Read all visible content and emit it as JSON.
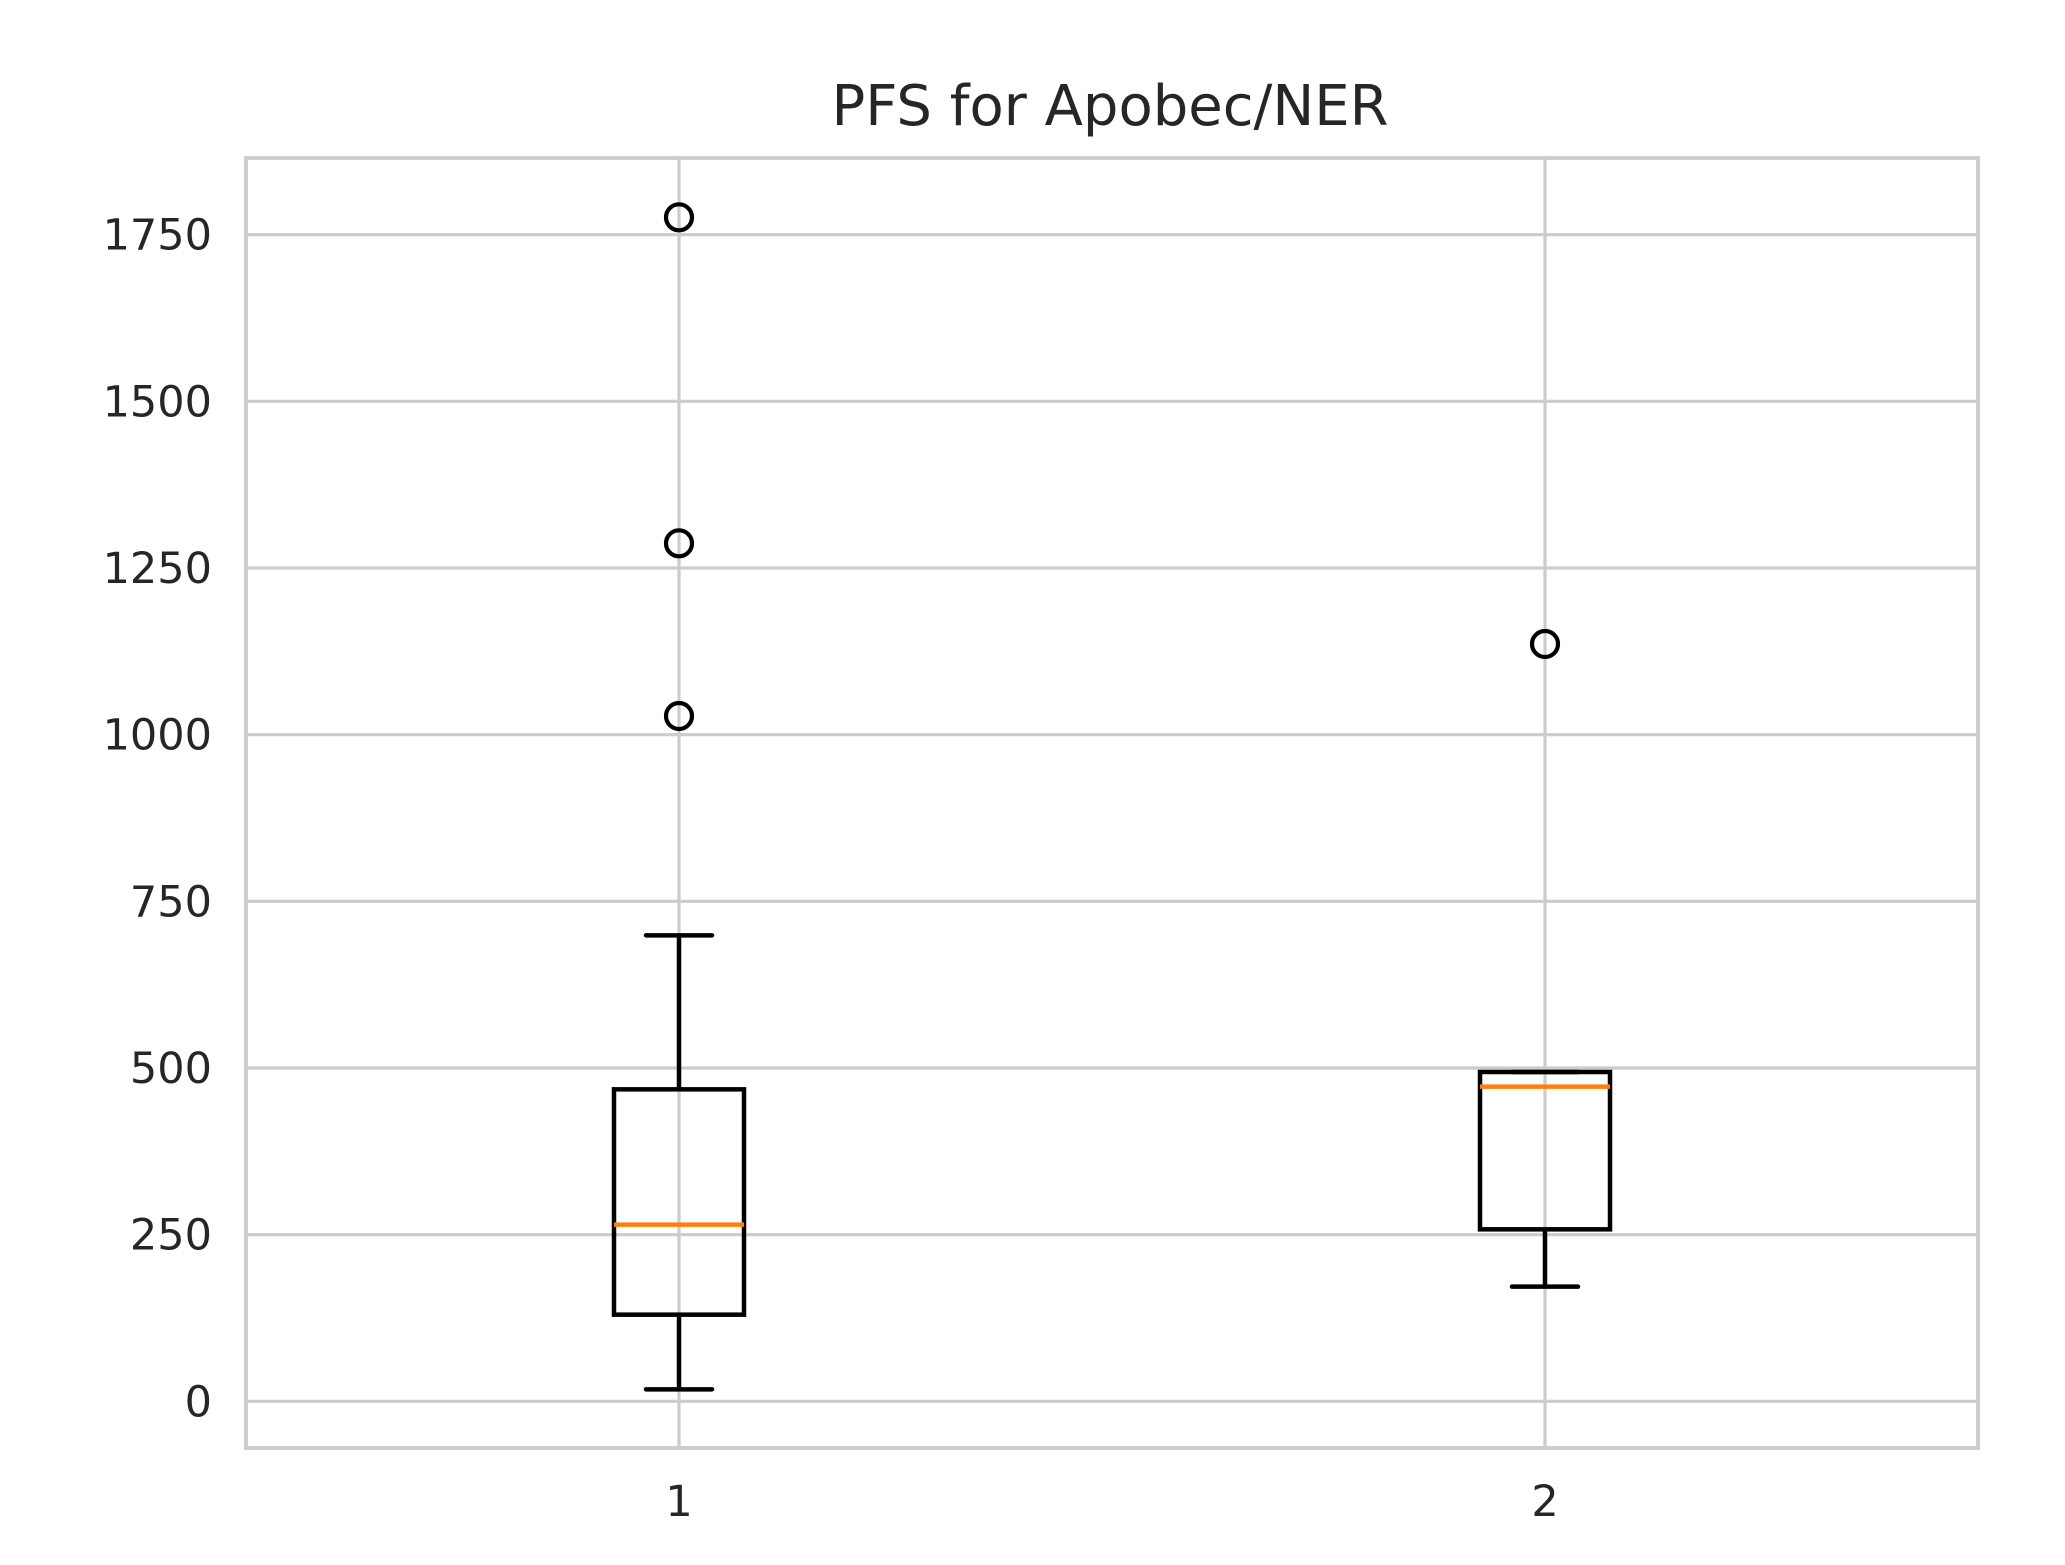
{
  "chart_data": {
    "type": "box",
    "title": "PFS for Apobec/NER",
    "xlabel": "",
    "ylabel": "",
    "categories": [
      "1",
      "2"
    ],
    "ylim": [
      -70,
      1865
    ],
    "y_ticks": [
      0,
      250,
      500,
      750,
      1000,
      1250,
      1500,
      1750
    ],
    "grid": true,
    "boxes": [
      {
        "label": "1",
        "whisker_low": 18,
        "q1": 130,
        "median": 265,
        "q3": 468,
        "whisker_high": 699,
        "outliers": [
          1028,
          1287,
          1776
        ]
      },
      {
        "label": "2",
        "whisker_low": 172,
        "q1": 258,
        "median": 472,
        "q3": 494,
        "whisker_high": 494,
        "outliers": [
          1136
        ]
      }
    ],
    "colors": {
      "box": "#000000",
      "median": "#ff7f0e",
      "grid": "#cccccc",
      "text": "#262626"
    }
  }
}
